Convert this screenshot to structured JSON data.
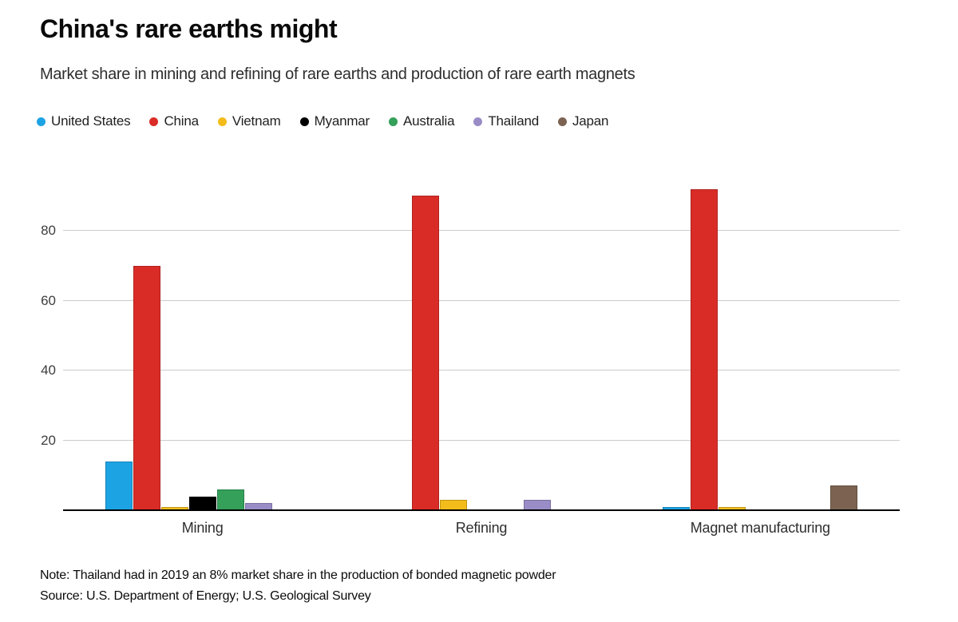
{
  "header": {
    "title": "China's rare earths might",
    "subtitle": "Market share in mining and refining of rare earths and production of rare earth magnets"
  },
  "footer": {
    "note": "Note: Thailand had in 2019 an 8% market share in the production of bonded magnetic powder",
    "source": "Source: U.S. Department of Energy; U.S. Geological Survey"
  },
  "colors": {
    "gridline": "#cccccc",
    "axis_line": "#000000",
    "title_text": "#0a0a0a",
    "body_text": "#2e2e2e"
  },
  "chart_data": {
    "type": "bar",
    "title": "China's rare earths might",
    "subtitle": "Market share in mining and refining of rare earths and production of rare earth magnets",
    "categories": [
      "Mining",
      "Refining",
      "Magnet manufacturing"
    ],
    "series": [
      {
        "name": "United States",
        "color": "#1ca3e4",
        "values": [
          14,
          0,
          1
        ]
      },
      {
        "name": "China",
        "color": "#da2c27",
        "values": [
          70,
          90,
          92
        ]
      },
      {
        "name": "Vietnam",
        "color": "#f2bc1b",
        "values": [
          1,
          3,
          1
        ]
      },
      {
        "name": "Myanmar",
        "color": "#000000",
        "values": [
          4,
          0,
          0
        ]
      },
      {
        "name": "Australia",
        "color": "#34a05a",
        "values": [
          6,
          0,
          0
        ]
      },
      {
        "name": "Thailand",
        "color": "#9a8cc6",
        "values": [
          2,
          3,
          0
        ]
      },
      {
        "name": "Japan",
        "color": "#7c6351",
        "values": [
          0,
          0,
          7
        ]
      }
    ],
    "ylabel": "",
    "xlabel": "",
    "ylim": [
      0,
      96
    ],
    "yticks": [
      20,
      40,
      60,
      80
    ],
    "grid": true,
    "legend_position": "top",
    "unit": "percent"
  }
}
